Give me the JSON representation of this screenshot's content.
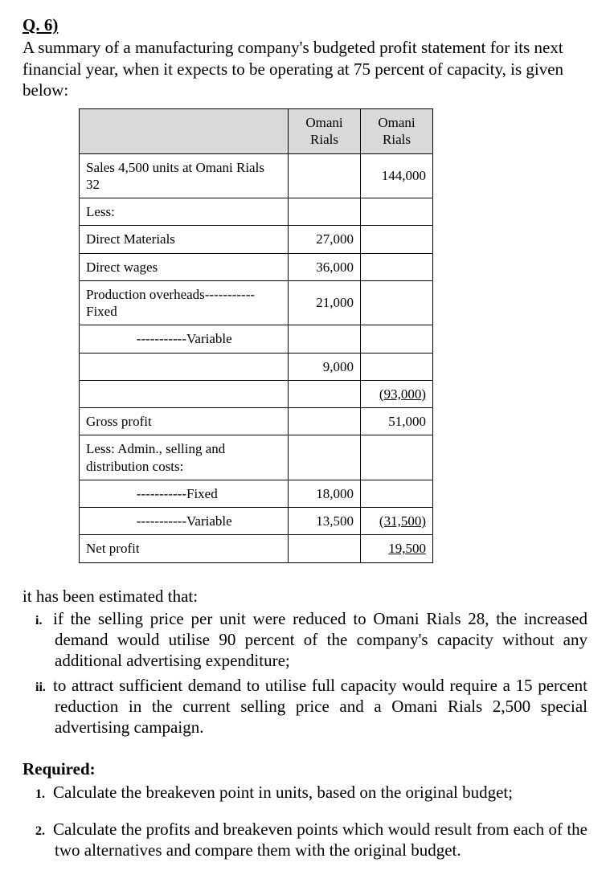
{
  "question_label": "Q. 6)",
  "intro_text": "A summary of a manufacturing company's budgeted profit statement for its next financial year, when it expects to be operating at 75 percent of capacity, is given below:",
  "table": {
    "header_c1": "Omani Rials",
    "header_c2": "Omani Rials",
    "rows": [
      {
        "desc": "Sales 4,500 units at Omani Rials 32",
        "c1": "",
        "c2": "144,000"
      },
      {
        "desc": "Less:",
        "c1": "",
        "c2": ""
      },
      {
        "desc": "Direct Materials",
        "c1": "27,000",
        "c2": ""
      },
      {
        "desc": "Direct wages",
        "c1": "36,000",
        "c2": ""
      },
      {
        "desc": "Production overheads-----------Fixed",
        "c1": "21,000",
        "c2": ""
      },
      {
        "desc_prefix": "-----------",
        "desc_suffix": "Variable",
        "c1": "",
        "c2": ""
      },
      {
        "desc": "",
        "c1": "9,000",
        "c2": ""
      },
      {
        "desc": "",
        "c1": "",
        "c2": "(93,000)",
        "u2": true
      },
      {
        "desc": "Gross profit",
        "c1": "",
        "c2": "51,000"
      },
      {
        "desc": "Less: Admin., selling and distribution costs:",
        "c1": "",
        "c2": ""
      },
      {
        "desc_prefix": "-----------",
        "desc_suffix": "Fixed",
        "c1": "18,000",
        "c2": ""
      },
      {
        "desc_prefix": "-----------",
        "desc_suffix": "Variable",
        "c1": "13,500",
        "c2": "(31,500)",
        "u2": true
      },
      {
        "desc": "Net profit",
        "c1": "",
        "c2": "19,500",
        "u2": true
      }
    ]
  },
  "estimate_intro": "it has been estimated that:",
  "scenarios": {
    "i": "if the selling price per unit were reduced to Omani Rials 28, the increased demand would utilise 90 percent of the company's capacity without any additional advertising expenditure;",
    "ii": "to attract sufficient demand to utilise full capacity would require a 15 percent reduction in the current selling price and a Omani Rials 2,500 special advertising campaign."
  },
  "required_head": "Required:",
  "required": {
    "r1": "Calculate the breakeven point in units, based on the original budget;",
    "r2": "Calculate the profits and breakeven points which would result from each of the two alternatives and compare them with the original budget."
  }
}
